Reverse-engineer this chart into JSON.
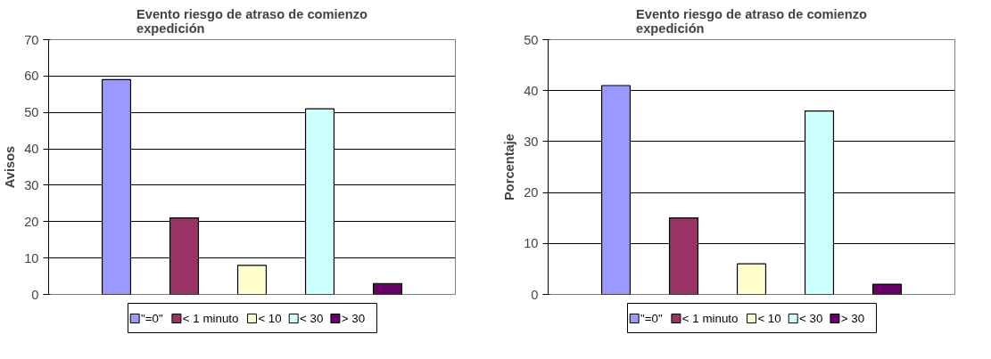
{
  "chart_data": [
    {
      "type": "bar",
      "title": "Evento riesgo de atraso de comienzo expedición",
      "ylabel": "Avisos",
      "categories": [
        null
      ],
      "series": [
        {
          "name": "\"=0\"",
          "color": "#9999ff",
          "values": [
            59
          ]
        },
        {
          "name": "< 1 minuto",
          "color": "#993366",
          "values": [
            21
          ]
        },
        {
          "name": "< 10",
          "color": "#ffffcc",
          "values": [
            8
          ]
        },
        {
          "name": "< 30",
          "color": "#ccffff",
          "values": [
            51
          ]
        },
        {
          "name": "> 30",
          "color": "#660066",
          "values": [
            3
          ]
        }
      ],
      "ylim": [
        0,
        70
      ],
      "yticks": [
        0,
        10,
        20,
        30,
        40,
        50,
        60,
        70
      ],
      "grid": "y",
      "legend": "bottom"
    },
    {
      "type": "bar",
      "title": "Evento riesgo de atraso de comienzo expedición",
      "ylabel": "Porcentaje",
      "categories": [
        null
      ],
      "series": [
        {
          "name": "\"=0\"",
          "color": "#9999ff",
          "values": [
            41
          ]
        },
        {
          "name": "< 1 minuto",
          "color": "#993366",
          "values": [
            15
          ]
        },
        {
          "name": "< 10",
          "color": "#ffffcc",
          "values": [
            6
          ]
        },
        {
          "name": "< 30",
          "color": "#ccffff",
          "values": [
            36
          ]
        },
        {
          "name": "> 30",
          "color": "#660066",
          "values": [
            2
          ]
        }
      ],
      "ylim": [
        0,
        50
      ],
      "yticks": [
        0,
        10,
        20,
        30,
        40,
        50
      ],
      "grid": "y",
      "legend": "bottom"
    }
  ]
}
